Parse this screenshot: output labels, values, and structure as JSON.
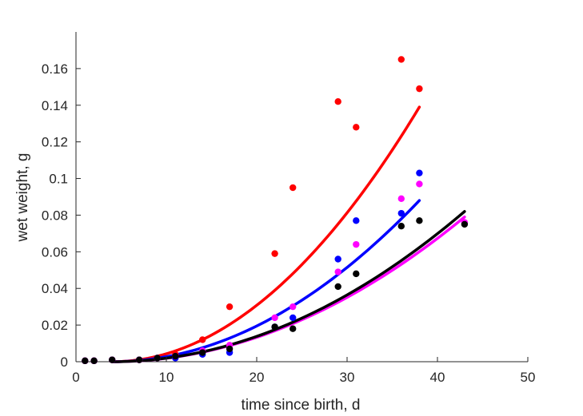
{
  "chart_data": {
    "type": "scatter",
    "title": "",
    "xlabel": "time since birth, d",
    "ylabel": "wet weight, g",
    "xlim": [
      0,
      50
    ],
    "ylim": [
      0,
      0.18
    ],
    "xticks": [
      0,
      10,
      20,
      30,
      40,
      50
    ],
    "xtick_labels": [
      "0",
      "10",
      "20",
      "30",
      "40",
      "50"
    ],
    "yticks": [
      0,
      0.02,
      0.04,
      0.06,
      0.08,
      0.1,
      0.12,
      0.14,
      0.16
    ],
    "ytick_labels": [
      "0",
      "0.02",
      "0.04",
      "0.06",
      "0.08",
      "0.1",
      "0.12",
      "0.14",
      "0.16"
    ],
    "grid": false,
    "legend": "none",
    "series": [
      {
        "color": "#ff0000",
        "points": [
          {
            "x": 1,
            "y": 0.0005
          },
          {
            "x": 2,
            "y": 0.0005
          },
          {
            "x": 4,
            "y": 0.001
          },
          {
            "x": 7,
            "y": 0.001
          },
          {
            "x": 9,
            "y": 0.002
          },
          {
            "x": 11,
            "y": 0.004
          },
          {
            "x": 14,
            "y": 0.012
          },
          {
            "x": 17,
            "y": 0.03
          },
          {
            "x": 22,
            "y": 0.059
          },
          {
            "x": 24,
            "y": 0.095
          },
          {
            "x": 29,
            "y": 0.142
          },
          {
            "x": 31,
            "y": 0.128
          },
          {
            "x": 36,
            "y": 0.165
          },
          {
            "x": 38,
            "y": 0.149
          }
        ],
        "fit": {
          "x_start": 4,
          "x_end": 38,
          "y_end": 0.139,
          "shape": "power",
          "exponent": 2.0
        }
      },
      {
        "color": "#0000ff",
        "points": [
          {
            "x": 1,
            "y": 0.0005
          },
          {
            "x": 2,
            "y": 0.0005
          },
          {
            "x": 4,
            "y": 0.001
          },
          {
            "x": 7,
            "y": 0.001
          },
          {
            "x": 9,
            "y": 0.002
          },
          {
            "x": 11,
            "y": 0.002
          },
          {
            "x": 14,
            "y": 0.004
          },
          {
            "x": 17,
            "y": 0.005
          },
          {
            "x": 22,
            "y": 0.019
          },
          {
            "x": 24,
            "y": 0.024
          },
          {
            "x": 29,
            "y": 0.056
          },
          {
            "x": 31,
            "y": 0.077
          },
          {
            "x": 36,
            "y": 0.081
          },
          {
            "x": 38,
            "y": 0.103
          }
        ],
        "fit": {
          "x_start": 4,
          "x_end": 38,
          "y_end": 0.088,
          "shape": "power",
          "exponent": 2.0
        }
      },
      {
        "color": "#ff00ff",
        "points": [
          {
            "x": 1,
            "y": 0.0005
          },
          {
            "x": 2,
            "y": 0.0005
          },
          {
            "x": 4,
            "y": 0.001
          },
          {
            "x": 7,
            "y": 0.001
          },
          {
            "x": 9,
            "y": 0.002
          },
          {
            "x": 11,
            "y": 0.003
          },
          {
            "x": 14,
            "y": 0.006
          },
          {
            "x": 17,
            "y": 0.009
          },
          {
            "x": 22,
            "y": 0.024
          },
          {
            "x": 24,
            "y": 0.03
          },
          {
            "x": 29,
            "y": 0.049
          },
          {
            "x": 31,
            "y": 0.064
          },
          {
            "x": 36,
            "y": 0.089
          },
          {
            "x": 38,
            "y": 0.097
          },
          {
            "x": 43,
            "y": 0.076
          }
        ],
        "fit": {
          "x_start": 4,
          "x_end": 43,
          "y_end": 0.079,
          "shape": "power",
          "exponent": 2.0
        }
      },
      {
        "color": "#000000",
        "points": [
          {
            "x": 1,
            "y": 0.0005
          },
          {
            "x": 2,
            "y": 0.0005
          },
          {
            "x": 4,
            "y": 0.001
          },
          {
            "x": 7,
            "y": 0.001
          },
          {
            "x": 9,
            "y": 0.002
          },
          {
            "x": 11,
            "y": 0.003
          },
          {
            "x": 14,
            "y": 0.005
          },
          {
            "x": 17,
            "y": 0.007
          },
          {
            "x": 22,
            "y": 0.019
          },
          {
            "x": 24,
            "y": 0.018
          },
          {
            "x": 29,
            "y": 0.041
          },
          {
            "x": 31,
            "y": 0.048
          },
          {
            "x": 36,
            "y": 0.074
          },
          {
            "x": 38,
            "y": 0.077
          },
          {
            "x": 43,
            "y": 0.075
          }
        ],
        "fit": {
          "x_start": 4,
          "x_end": 43,
          "y_end": 0.082,
          "shape": "power",
          "exponent": 2.0
        }
      }
    ]
  }
}
